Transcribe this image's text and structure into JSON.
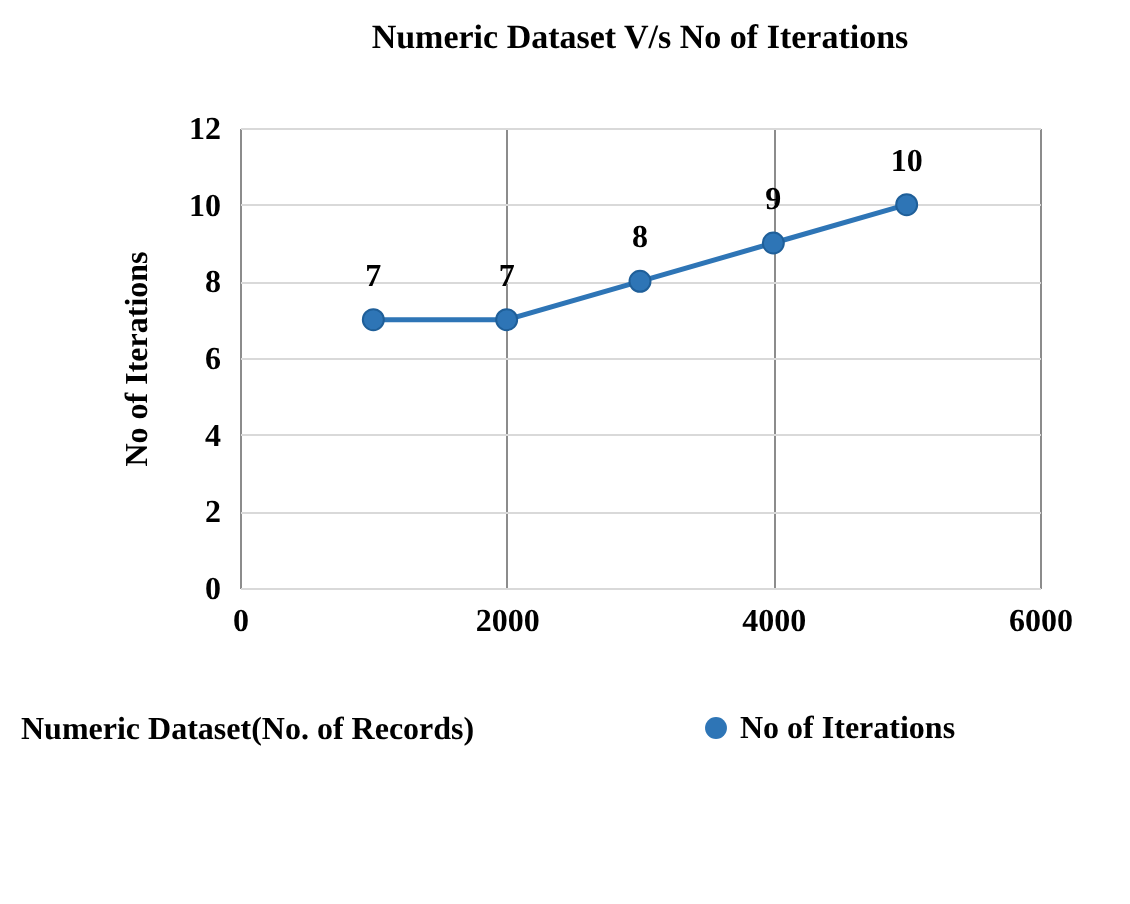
{
  "chart_data": {
    "type": "line",
    "title": "Numeric Dataset V/s No of Iterations",
    "xlabel": "Numeric Dataset(No. of Records)",
    "ylabel": "No of Iterations",
    "x": [
      1000,
      2000,
      3000,
      4000,
      5000
    ],
    "series": [
      {
        "name": "No of Iterations",
        "color": "#2e75b6",
        "values": [
          7,
          7,
          8,
          9,
          10
        ]
      }
    ],
    "xlim": [
      0,
      6000
    ],
    "xticks": [
      0,
      2000,
      4000,
      6000
    ],
    "ylim": [
      0,
      12
    ],
    "yticks": [
      0,
      2,
      4,
      6,
      8,
      10,
      12
    ],
    "grid": true,
    "legend": "bottom right",
    "marker": "circle",
    "line_style": "solid",
    "data_labels": true
  }
}
